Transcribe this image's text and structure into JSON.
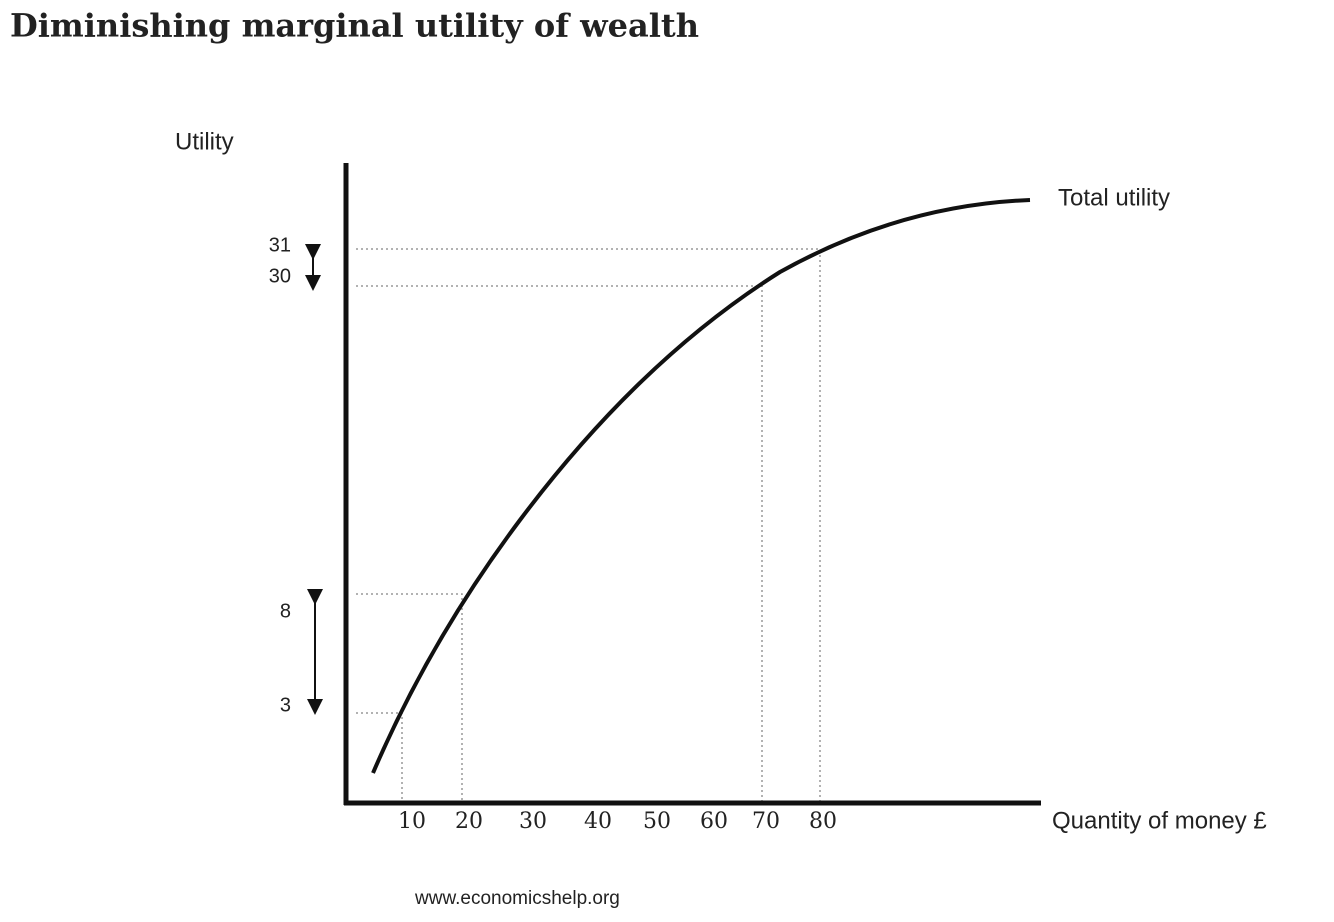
{
  "header": {
    "title": "Diminishing marginal utility of wealth"
  },
  "diagram": {
    "y_axis_label": "Utility",
    "x_axis_label": "Quantity  of money £",
    "curve_label": "Total utility",
    "x_tick_labels": [
      "10",
      "20",
      "30",
      "40",
      "50",
      "60",
      "70",
      "80"
    ],
    "y_tick_labels": [
      "31",
      "30",
      "8",
      "3"
    ],
    "source": "www.economicshelp.org"
  }
}
